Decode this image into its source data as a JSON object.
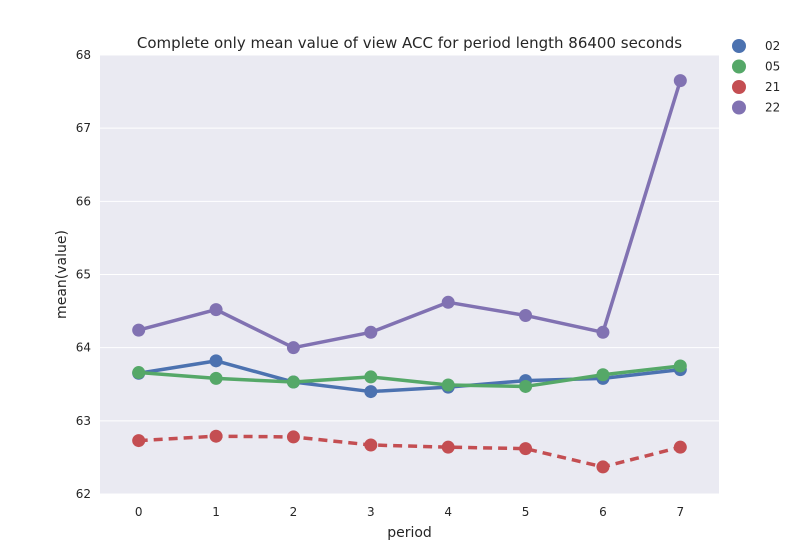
{
  "chart_data": {
    "type": "line",
    "title": "Complete only mean value of view ACC for period length 86400 seconds",
    "xlabel": "period",
    "ylabel": "mean(value)",
    "categories": [
      "0",
      "1",
      "2",
      "3",
      "4",
      "5",
      "6",
      "7"
    ],
    "yticks": [
      "62",
      "63",
      "64",
      "65",
      "66",
      "67",
      "68"
    ],
    "ylim": [
      62,
      68
    ],
    "grid": true,
    "legend_position": "outside-top-right",
    "series": [
      {
        "name": "02",
        "color": "#4C72B0",
        "dashed": false,
        "values": [
          63.65,
          63.82,
          63.53,
          63.4,
          63.46,
          63.55,
          63.58,
          63.7
        ]
      },
      {
        "name": "05",
        "color": "#55A868",
        "dashed": false,
        "values": [
          63.66,
          63.58,
          63.53,
          63.6,
          63.49,
          63.47,
          63.63,
          63.75
        ]
      },
      {
        "name": "21",
        "color": "#C44E52",
        "dashed": true,
        "values": [
          62.73,
          62.79,
          62.78,
          62.67,
          62.64,
          62.62,
          62.37,
          62.64
        ]
      },
      {
        "name": "22",
        "color": "#8172B2",
        "dashed": false,
        "values": [
          64.24,
          64.52,
          64.0,
          64.21,
          64.62,
          64.44,
          64.21,
          67.65
        ]
      }
    ]
  }
}
